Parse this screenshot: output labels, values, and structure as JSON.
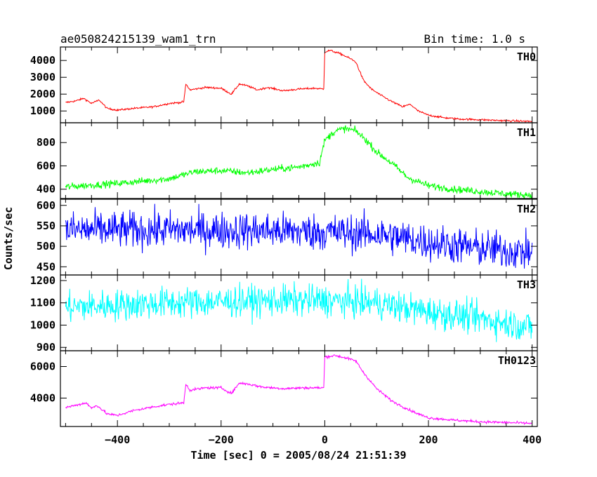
{
  "header": {
    "title": "ae050824215139_wam1_trn",
    "bin_time": "Bin time: 1.0 s"
  },
  "xlabel": "Time [sec] 0 = 2005/08/24 21:51:39",
  "ylabel": "Counts/sec",
  "chart_data": [
    {
      "type": "line",
      "name": "TH0",
      "color": "#ff0000",
      "xlim": [
        -510,
        410
      ],
      "ylim": [
        300,
        4800
      ],
      "yticks": [
        1000,
        2000,
        3000,
        4000
      ],
      "points": [
        [
          -500,
          1500
        ],
        [
          -480,
          1600
        ],
        [
          -465,
          1750
        ],
        [
          -450,
          1450
        ],
        [
          -435,
          1650
        ],
        [
          -420,
          1150
        ],
        [
          -400,
          1050
        ],
        [
          -370,
          1150
        ],
        [
          -330,
          1250
        ],
        [
          -300,
          1450
        ],
        [
          -280,
          1500
        ],
        [
          -272,
          1550
        ],
        [
          -268,
          2600
        ],
        [
          -260,
          2250
        ],
        [
          -230,
          2400
        ],
        [
          -200,
          2350
        ],
        [
          -180,
          2000
        ],
        [
          -165,
          2600
        ],
        [
          -150,
          2500
        ],
        [
          -130,
          2250
        ],
        [
          -110,
          2400
        ],
        [
          -80,
          2200
        ],
        [
          -50,
          2300
        ],
        [
          -20,
          2350
        ],
        [
          -2,
          2300
        ],
        [
          0,
          4500
        ],
        [
          10,
          4600
        ],
        [
          30,
          4400
        ],
        [
          50,
          4100
        ],
        [
          60,
          3900
        ],
        [
          75,
          2800
        ],
        [
          90,
          2300
        ],
        [
          110,
          1900
        ],
        [
          130,
          1550
        ],
        [
          150,
          1250
        ],
        [
          165,
          1400
        ],
        [
          180,
          1000
        ],
        [
          200,
          750
        ],
        [
          230,
          600
        ],
        [
          260,
          520
        ],
        [
          300,
          480
        ],
        [
          350,
          420
        ],
        [
          400,
          380
        ]
      ],
      "noise": 55
    },
    {
      "type": "line",
      "name": "TH1",
      "color": "#00ff00",
      "xlim": [
        -510,
        410
      ],
      "ylim": [
        320,
        970
      ],
      "yticks": [
        400,
        600,
        800
      ],
      "points": [
        [
          -500,
          420
        ],
        [
          -400,
          450
        ],
        [
          -300,
          490
        ],
        [
          -250,
          550
        ],
        [
          -200,
          560
        ],
        [
          -150,
          540
        ],
        [
          -100,
          570
        ],
        [
          -50,
          590
        ],
        [
          -10,
          630
        ],
        [
          0,
          820
        ],
        [
          20,
          900
        ],
        [
          40,
          920
        ],
        [
          60,
          900
        ],
        [
          80,
          820
        ],
        [
          100,
          720
        ],
        [
          130,
          620
        ],
        [
          160,
          500
        ],
        [
          200,
          430
        ],
        [
          250,
          400
        ],
        [
          300,
          380
        ],
        [
          350,
          360
        ],
        [
          400,
          350
        ]
      ],
      "noise": 30
    },
    {
      "type": "line",
      "name": "TH2",
      "color": "#0000ff",
      "xlim": [
        -510,
        410
      ],
      "ylim": [
        430,
        615
      ],
      "yticks": [
        450,
        500,
        550,
        600
      ],
      "points": [
        [
          -500,
          540
        ],
        [
          -300,
          540
        ],
        [
          -100,
          538
        ],
        [
          0,
          535
        ],
        [
          100,
          530
        ],
        [
          200,
          510
        ],
        [
          300,
          495
        ],
        [
          400,
          485
        ]
      ],
      "noise": 45
    },
    {
      "type": "line",
      "name": "TH3",
      "color": "#00ffff",
      "xlim": [
        -510,
        410
      ],
      "ylim": [
        885,
        1225
      ],
      "yticks": [
        900,
        1000,
        1100,
        1200
      ],
      "points": [
        [
          -500,
          1080
        ],
        [
          -300,
          1100
        ],
        [
          -100,
          1110
        ],
        [
          0,
          1110
        ],
        [
          100,
          1100
        ],
        [
          200,
          1060
        ],
        [
          300,
          1030
        ],
        [
          400,
          990
        ]
      ],
      "noise": 70
    },
    {
      "type": "line",
      "name": "TH0123",
      "color": "#ff00ff",
      "xlim": [
        -510,
        410
      ],
      "ylim": [
        2200,
        7000
      ],
      "yticks": [
        4000,
        6000
      ],
      "points": [
        [
          -500,
          3400
        ],
        [
          -480,
          3550
        ],
        [
          -460,
          3700
        ],
        [
          -450,
          3350
        ],
        [
          -440,
          3550
        ],
        [
          -420,
          3000
        ],
        [
          -400,
          2900
        ],
        [
          -370,
          3200
        ],
        [
          -330,
          3450
        ],
        [
          -300,
          3600
        ],
        [
          -272,
          3700
        ],
        [
          -268,
          4900
        ],
        [
          -260,
          4500
        ],
        [
          -230,
          4650
        ],
        [
          -200,
          4650
        ],
        [
          -180,
          4300
        ],
        [
          -165,
          4950
        ],
        [
          -150,
          4900
        ],
        [
          -120,
          4700
        ],
        [
          -80,
          4600
        ],
        [
          -40,
          4650
        ],
        [
          -2,
          4650
        ],
        [
          0,
          6600
        ],
        [
          20,
          6700
        ],
        [
          40,
          6550
        ],
        [
          60,
          6350
        ],
        [
          75,
          5600
        ],
        [
          100,
          4600
        ],
        [
          130,
          3800
        ],
        [
          160,
          3300
        ],
        [
          180,
          3000
        ],
        [
          200,
          2750
        ],
        [
          250,
          2600
        ],
        [
          300,
          2500
        ],
        [
          400,
          2400
        ]
      ],
      "noise": 80
    }
  ],
  "xaxis": {
    "ticks": [
      -400,
      -200,
      0,
      200,
      400
    ],
    "tick_labels": [
      "−400",
      "−200",
      "0",
      "200",
      "400"
    ],
    "minor_step": 50
  }
}
